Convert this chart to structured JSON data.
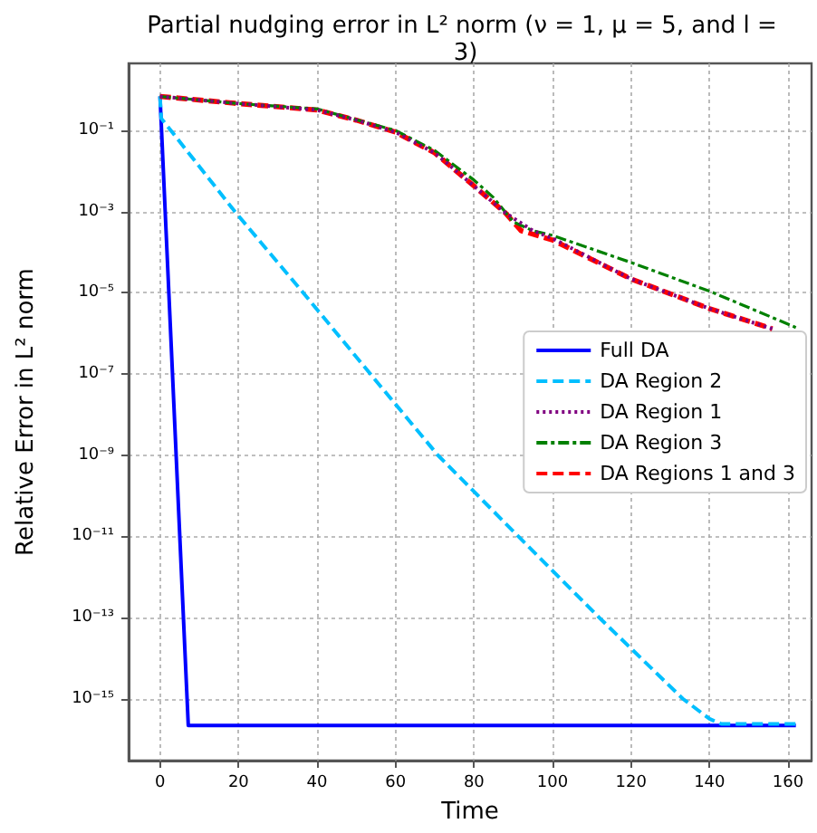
{
  "chart_data": {
    "type": "line",
    "title": "Partial nudging error in L² norm (ν = 1, μ = 5, and l = 3)",
    "xlabel": "Time",
    "ylabel": "Relative Error in L² norm",
    "log": "y",
    "grid": true,
    "legend": "right",
    "marker": "none",
    "xlim": [
      -8,
      166
    ],
    "xticks": [
      0,
      20,
      40,
      60,
      80,
      100,
      120,
      140,
      160
    ],
    "ylim": [
      3e-17,
      4.5
    ],
    "yticks": [
      {
        "value": 1e-15,
        "label": "10⁻¹⁵"
      },
      {
        "value": 1e-13,
        "label": "10⁻¹³"
      },
      {
        "value": 1e-11,
        "label": "10⁻¹¹"
      },
      {
        "value": 1e-09,
        "label": "10⁻⁹"
      },
      {
        "value": 1e-07,
        "label": "10⁻⁷"
      },
      {
        "value": 1e-05,
        "label": "10⁻⁵"
      },
      {
        "value": 0.001,
        "label": "10⁻³"
      },
      {
        "value": 0.1,
        "label": "10⁻¹"
      }
    ],
    "series": [
      {
        "name": "Full DA",
        "color": "#0000ff",
        "line_style": "solid",
        "x": [
          0,
          7.2,
          162
        ],
        "values": [
          0.69,
          2.2e-16,
          2.2e-16
        ]
      },
      {
        "name": "DA Region 2",
        "color": "#00bfff",
        "line_style": "dashed",
        "x": [
          0,
          0.3,
          19.1,
          36.5,
          53.6,
          70.8,
          91.3,
          111.9,
          133.2,
          140,
          143,
          162
        ],
        "values": [
          0.69,
          0.2,
          0.001,
          1e-05,
          1e-07,
          1e-09,
          1e-11,
          1e-13,
          1e-15,
          3.2e-16,
          2.4e-16,
          2.4e-16
        ]
      },
      {
        "name": "DA Region 1",
        "color": "#800080",
        "line_style": "dotted",
        "x": [
          0,
          20,
          40,
          50,
          60,
          70,
          80,
          88,
          95,
          100,
          120,
          140,
          156
        ],
        "values": [
          0.69,
          0.46,
          0.32,
          0.18,
          0.091,
          0.028,
          0.0043,
          0.00093,
          0.00034,
          0.00022,
          2.2e-05,
          4.1e-06,
          1.3e-06
        ]
      },
      {
        "name": "DA Region 3",
        "color": "#008000",
        "line_style": "dashdot",
        "x": [
          0,
          20,
          40,
          60,
          70,
          80,
          85,
          90,
          95,
          100,
          120,
          140,
          160,
          162
        ],
        "values": [
          0.69,
          0.46,
          0.34,
          0.1,
          0.032,
          0.006,
          0.0022,
          0.00056,
          0.00034,
          0.00026,
          5.6e-05,
          1.1e-05,
          1.7e-06,
          1.4e-06
        ]
      },
      {
        "name": "DA Regions 1 and 3",
        "color": "#ff0000",
        "line_style": "dashed",
        "x": [
          0,
          20,
          40,
          50,
          60,
          70,
          80,
          88,
          92,
          100,
          120,
          140,
          156
        ],
        "values": [
          0.69,
          0.46,
          0.32,
          0.18,
          0.091,
          0.028,
          0.0043,
          0.00093,
          0.00034,
          0.0002,
          2.2e-05,
          4.1e-06,
          1.3e-06
        ]
      }
    ]
  }
}
